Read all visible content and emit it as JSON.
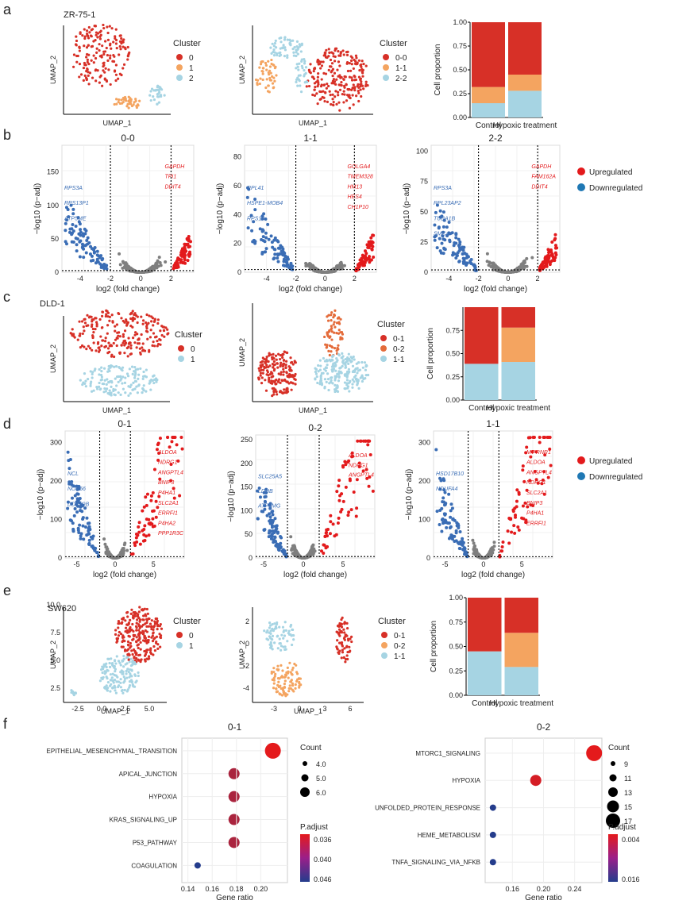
{
  "colors": {
    "red": "#d73027",
    "orange": "#f4a460",
    "blue": "#a6d4e3",
    "dkblue": "#3a6db5",
    "grey": "#7f7f7f",
    "up": "#e31a1c",
    "down": "#1f78b4"
  },
  "panels": [
    {
      "letter": "a",
      "cell_line": "ZR-75-1",
      "umap1": {
        "xlabel": "UMAP_1",
        "ylabel": "UMAP_2",
        "legend_title": "Cluster",
        "clusters": [
          "0",
          "1",
          "2"
        ]
      },
      "umap2": {
        "xlabel": "UMAP_1",
        "ylabel": "UMAP_2",
        "legend_title": "Cluster",
        "clusters": [
          "0-0",
          "1-1",
          "2-2"
        ]
      },
      "bar": {
        "ylabel": "Cell proportion",
        "yticks": [
          "0.00",
          "0.25",
          "0.50",
          "0.75",
          "1.00"
        ],
        "categories": [
          "Control",
          "Hypoxic treatment"
        ],
        "values": [
          [
            0.15,
            0.17,
            0.68
          ],
          [
            0.28,
            0.17,
            0.55
          ]
        ]
      }
    },
    {
      "letter": "c",
      "cell_line": "DLD-1",
      "umap1": {
        "xlabel": "UMAP_1",
        "ylabel": "UMAP_2",
        "legend_title": "Cluster",
        "clusters": [
          "0",
          "1"
        ]
      },
      "umap2": {
        "xlabel": "UMAP_1",
        "ylabel": "UMAP_2",
        "legend_title": "Cluster",
        "clusters": [
          "0-1",
          "0-2",
          "1-1"
        ]
      },
      "bar": {
        "ylabel": "Cell proportion",
        "yticks": [
          "0.00",
          "0.25",
          "0.50",
          "0.75"
        ],
        "categories": [
          "Control",
          "Hypoxic treatment"
        ],
        "values": [
          [
            0.39,
            0.0,
            0.61
          ],
          [
            0.41,
            0.37,
            0.22
          ]
        ]
      }
    },
    {
      "letter": "e",
      "cell_line": "SW620",
      "umap1": {
        "xlabel": "UMAP_1",
        "ylabel": "UMAP_2",
        "legend_title": "Cluster",
        "clusters": [
          "0",
          "1"
        ],
        "xticks": [
          "-2.5",
          "0.0",
          "2.5",
          "5.0"
        ],
        "yticks": [
          "2.5",
          "5.0",
          "7.5",
          "10.0"
        ]
      },
      "umap2": {
        "xlabel": "UMAP_1",
        "ylabel": "UMAP_2",
        "legend_title": "Cluster",
        "clusters": [
          "0-1",
          "0-2",
          "1-1"
        ],
        "xticks": [
          "-3",
          "0",
          "3",
          "6"
        ],
        "yticks": [
          "-4",
          "-2",
          "0",
          "2"
        ]
      },
      "bar": {
        "ylabel": "Cell proportion",
        "yticks": [
          "0.00",
          "0.25",
          "0.50",
          "0.75",
          "1.00"
        ],
        "categories": [
          "Control",
          "Hypoxic treatment"
        ],
        "values": [
          [
            0.45,
            0.0,
            0.55
          ],
          [
            0.29,
            0.35,
            0.36
          ]
        ]
      }
    }
  ],
  "volcano_rows": [
    {
      "letter": "b",
      "xlabel": "log2 (fold change)",
      "ylabel": "−log10 (p−adj)",
      "legend": [
        "Upregulated",
        "Downregulated"
      ],
      "plots": [
        {
          "title": "0-0",
          "xticks": [
            "-4",
            "-2",
            "0",
            "2"
          ],
          "yticks": [
            "0",
            "50",
            "100",
            "150"
          ],
          "up_labels": [
            "GAPDH",
            "TPI1",
            "DDIT4"
          ],
          "down_labels": [
            "RPS3A",
            "RPS13P1",
            "ATP5ME"
          ]
        },
        {
          "title": "1-1",
          "xticks": [
            "-4",
            "-2",
            "0",
            "2"
          ],
          "yticks": [
            "0",
            "20",
            "40",
            "60",
            "80"
          ],
          "up_labels": [
            "GOLGA4",
            "TMEM328",
            "HM13",
            "HES4",
            "CH1P10"
          ],
          "down_labels": [
            "RPL41",
            "HSPE1-MOB4",
            "RPS10"
          ]
        },
        {
          "title": "2-2",
          "xticks": [
            "-4",
            "-2",
            "0",
            "2"
          ],
          "yticks": [
            "0",
            "25",
            "50",
            "75",
            "100"
          ],
          "up_labels": [
            "GAPDH",
            "FAM162A",
            "DDIT4"
          ],
          "down_labels": [
            "RPS3A",
            "RPL23AP2",
            "TUBA1B",
            "SMC4"
          ]
        }
      ]
    },
    {
      "letter": "d",
      "xlabel": "log2 (fold change)",
      "ylabel": "−log10 (p−adj)",
      "legend": [
        "Upregulated",
        "Downregulated"
      ],
      "plots": [
        {
          "title": "0-1",
          "xticks": [
            "-5",
            "0",
            "5"
          ],
          "yticks": [
            "0",
            "100",
            "200",
            "300"
          ],
          "up_labels": [
            "ALDOA",
            "NDRG1",
            "ANGPTL4",
            "BNIP3",
            "P4HA1",
            "SLC2A1",
            "ERRFI1",
            "P4HA2",
            "PPP1R3C"
          ],
          "down_labels": [
            "NCL",
            "NOP56",
            "DDX39B"
          ]
        },
        {
          "title": "0-2",
          "xticks": [
            "-5",
            "0",
            "5"
          ],
          "yticks": [
            "0",
            "50",
            "100",
            "150",
            "200",
            "250"
          ],
          "up_labels": [
            "ALDOA",
            "NDRG1",
            "ANGPTL4"
          ],
          "down_labels": [
            "SLC25A5",
            "LDHB",
            "ATP5MG"
          ]
        },
        {
          "title": "1-1",
          "xticks": [
            "-5",
            "0",
            "5"
          ],
          "yticks": [
            "0",
            "100",
            "200",
            "300"
          ],
          "up_labels": [
            "MT-RNR1",
            "ALDOA",
            "ANGPTL4",
            "NDRG1",
            "SLC2A1",
            "BNIP3",
            "P4HA1",
            "ERRFI1"
          ],
          "down_labels": [
            "HSD17B10",
            "NDUFA4"
          ]
        }
      ]
    }
  ],
  "enrichment": {
    "letter": "f",
    "xlabel": "Gene ratio",
    "plots": [
      {
        "title": "0-1",
        "xticks": [
          "0.14",
          "0.16",
          "0.18",
          "0.20"
        ],
        "terms": [
          "EPITHELIAL_MESENCHYMAL_TRANSITION",
          "APICAL_JUNCTION",
          "HYPOXIA",
          "KRAS_SIGNALING_UP",
          "P53_PATHWAY",
          "COAGULATION"
        ],
        "ratio": [
          0.21,
          0.178,
          0.178,
          0.178,
          0.178,
          0.148
        ],
        "count": [
          6,
          5,
          5,
          5,
          5,
          4
        ],
        "padj": [
          0.036,
          0.039,
          0.039,
          0.039,
          0.039,
          0.046
        ],
        "count_title": "Count",
        "count_labels": [
          "4.0",
          "5.0",
          "6.0"
        ],
        "padj_title": "P.adjust",
        "padj_labels": [
          "0.036",
          "0.040",
          "0.046"
        ]
      },
      {
        "title": "0-2",
        "xticks": [
          "0.16",
          "0.20",
          "0.24"
        ],
        "terms": [
          "MTORC1_SIGNALING",
          "HYPOXIA",
          "UNFOLDED_PROTEIN_RESPONSE",
          "HEME_METABOLISM",
          "TNFA_SIGNALING_VIA_NFKB"
        ],
        "ratio": [
          0.265,
          0.19,
          0.135,
          0.135,
          0.135
        ],
        "count": [
          17,
          13,
          9,
          9,
          9
        ],
        "padj": [
          0.003,
          0.004,
          0.016,
          0.016,
          0.016
        ],
        "count_title": "Count",
        "count_labels": [
          "9",
          "11",
          "13",
          "15",
          "17"
        ],
        "padj_title": "P.adjust",
        "padj_labels": [
          "0.004",
          "0.016"
        ]
      }
    ]
  }
}
